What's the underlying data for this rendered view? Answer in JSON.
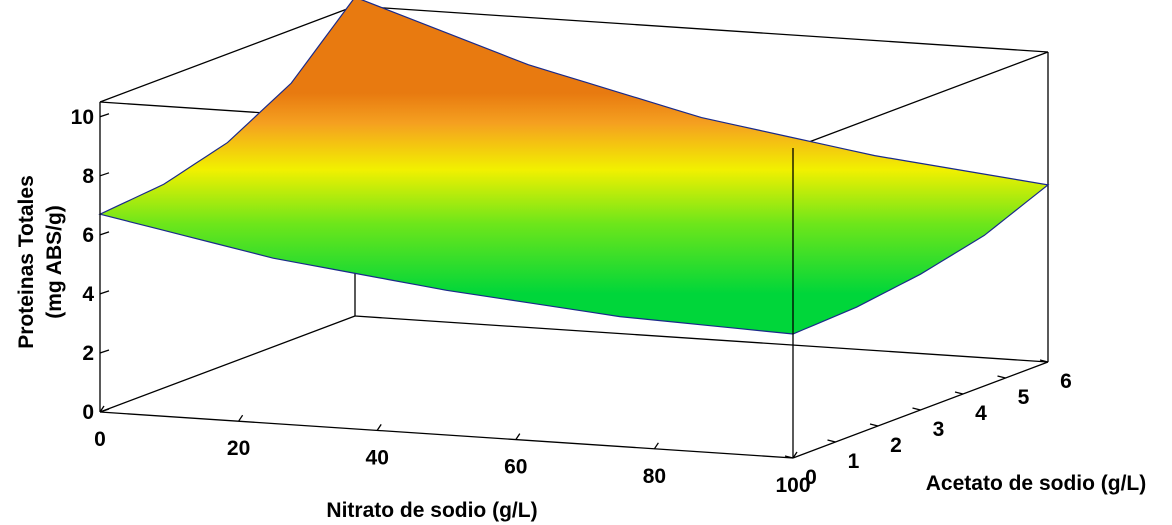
{
  "chart_data": {
    "type": "surface",
    "title": "",
    "xlabel": "Nitrato de sodio (g/L)",
    "ylabel": "Acetato de sodio (g/L)",
    "zlabel_lines": [
      "Proteinas Totales",
      "(mg ABS/g)"
    ],
    "x_ticks": [
      "0",
      "20",
      "40",
      "60",
      "80",
      "100"
    ],
    "y_ticks": [
      "0",
      "1",
      "2",
      "3",
      "4",
      "5",
      "6"
    ],
    "z_ticks": [
      "0",
      "2",
      "4",
      "6",
      "8",
      "10"
    ],
    "xlim": [
      0,
      100
    ],
    "ylim": [
      0,
      6
    ],
    "zlim": [
      0,
      10.5
    ],
    "colormap": [
      "#00d63a",
      "#6ee61a",
      "#f2f000",
      "#f5a020",
      "#e87a10"
    ],
    "surface": {
      "corners": [
        {
          "nitrato": 0,
          "acetato": 0,
          "proteinas": 6.7
        },
        {
          "nitrato": 100,
          "acetato": 0,
          "proteinas": 4.2
        },
        {
          "nitrato": 100,
          "acetato": 6,
          "proteinas": 6.0
        },
        {
          "nitrato": 0,
          "acetato": 6,
          "proteinas": 10.8
        }
      ],
      "x_grid": [
        0,
        25,
        50,
        75,
        100
      ],
      "y_grid": [
        0,
        1.5,
        3,
        4.5,
        6
      ],
      "z_values": [
        [
          6.7,
          5.6,
          4.9,
          4.4,
          4.2
        ],
        [
          6.9,
          5.8,
          5.0,
          4.5,
          4.3
        ],
        [
          7.5,
          6.4,
          5.4,
          4.8,
          4.6
        ],
        [
          8.7,
          7.2,
          6.0,
          5.3,
          5.1
        ],
        [
          10.8,
          8.9,
          7.5,
          6.6,
          6.0
        ]
      ]
    }
  }
}
